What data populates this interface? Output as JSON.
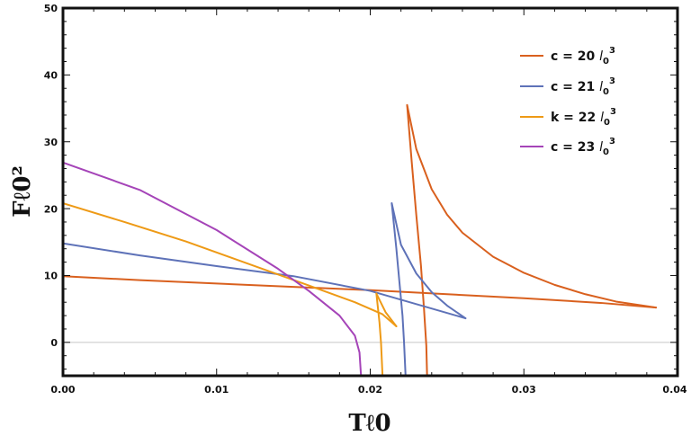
{
  "chart_data": {
    "type": "line",
    "title": "",
    "xlabel": "Tℓ0",
    "ylabel": "Fℓ0²",
    "xlim": [
      0.0,
      0.04
    ],
    "ylim": [
      -5,
      50
    ],
    "xticks": [
      "0.00",
      "0.01",
      "0.02",
      "0.03",
      "0.04"
    ],
    "xtick_values": [
      0.0,
      0.01,
      0.02,
      0.03,
      0.04
    ],
    "yticks": [
      "0",
      "10",
      "20",
      "30",
      "40",
      "50"
    ],
    "ytick_values": [
      0,
      10,
      20,
      30,
      40,
      50
    ],
    "legend_position": "top-right",
    "zero_line": true,
    "series": [
      {
        "name": "c = 20",
        "unit": "l",
        "unit_sub": "0",
        "unit_sup": "3",
        "color": "#D9601E",
        "branches": [
          [
            [
              0.0,
              9.9
            ],
            [
              0.005,
              9.3
            ],
            [
              0.01,
              8.8
            ],
            [
              0.015,
              8.3
            ],
            [
              0.02,
              7.8
            ],
            [
              0.025,
              7.2
            ],
            [
              0.03,
              6.6
            ],
            [
              0.035,
              5.9
            ],
            [
              0.0386,
              5.2
            ]
          ],
          [
            [
              0.0386,
              5.2
            ],
            [
              0.036,
              6.1
            ],
            [
              0.034,
              7.2
            ],
            [
              0.032,
              8.6
            ],
            [
              0.03,
              10.4
            ],
            [
              0.028,
              12.8
            ],
            [
              0.026,
              16.4
            ],
            [
              0.025,
              19.1
            ],
            [
              0.024,
              22.9
            ],
            [
              0.023,
              28.9
            ],
            [
              0.0224,
              35.5
            ]
          ],
          [
            [
              0.0224,
              35.5
            ],
            [
              0.0227,
              27.0
            ],
            [
              0.023,
              19.0
            ],
            [
              0.0233,
              11.5
            ],
            [
              0.0235,
              5.0
            ],
            [
              0.02365,
              -0.5
            ],
            [
              0.0237,
              -5.0
            ]
          ]
        ]
      },
      {
        "name": "c = 21",
        "unit": "l",
        "unit_sub": "0",
        "unit_sup": "3",
        "color": "#5E72B8",
        "branches": [
          [
            [
              0.0,
              14.8
            ],
            [
              0.005,
              13.0
            ],
            [
              0.01,
              11.4
            ],
            [
              0.015,
              9.9
            ],
            [
              0.02,
              7.7
            ],
            [
              0.0262,
              3.6
            ]
          ],
          [
            [
              0.0262,
              3.6
            ],
            [
              0.025,
              5.5
            ],
            [
              0.024,
              7.5
            ],
            [
              0.023,
              10.3
            ],
            [
              0.022,
              14.6
            ],
            [
              0.0214,
              20.8
            ]
          ],
          [
            [
              0.0214,
              20.8
            ],
            [
              0.0217,
              14.0
            ],
            [
              0.0219,
              9.0
            ],
            [
              0.0221,
              4.0
            ],
            [
              0.0222,
              0.0
            ],
            [
              0.0223,
              -5.0
            ]
          ]
        ]
      },
      {
        "name": "k = 22",
        "unit": "l",
        "unit_sub": "0",
        "unit_sup": "3",
        "color": "#EE9A16",
        "branches": [
          [
            [
              0.0,
              20.8
            ],
            [
              0.004,
              18.0
            ],
            [
              0.008,
              15.1
            ],
            [
              0.012,
              11.8
            ],
            [
              0.016,
              8.5
            ],
            [
              0.019,
              6.0
            ],
            [
              0.0208,
              4.2
            ],
            [
              0.0217,
              2.4
            ]
          ],
          [
            [
              0.0217,
              2.4
            ],
            [
              0.021,
              4.5
            ],
            [
              0.0204,
              7.3
            ]
          ],
          [
            [
              0.0204,
              7.3
            ],
            [
              0.0206,
              3.0
            ],
            [
              0.0207,
              0.0
            ],
            [
              0.0208,
              -5.0
            ]
          ]
        ]
      },
      {
        "name": "c = 23",
        "unit": "l",
        "unit_sub": "0",
        "unit_sup": "3",
        "color": "#A544B8",
        "branches": [
          [
            [
              0.0,
              26.9
            ],
            [
              0.005,
              22.8
            ],
            [
              0.01,
              16.8
            ],
            [
              0.014,
              11.0
            ],
            [
              0.016,
              7.7
            ],
            [
              0.018,
              4.0
            ],
            [
              0.019,
              1.0
            ],
            [
              0.0193,
              -1.5
            ],
            [
              0.0194,
              -5.0
            ]
          ]
        ]
      }
    ]
  }
}
